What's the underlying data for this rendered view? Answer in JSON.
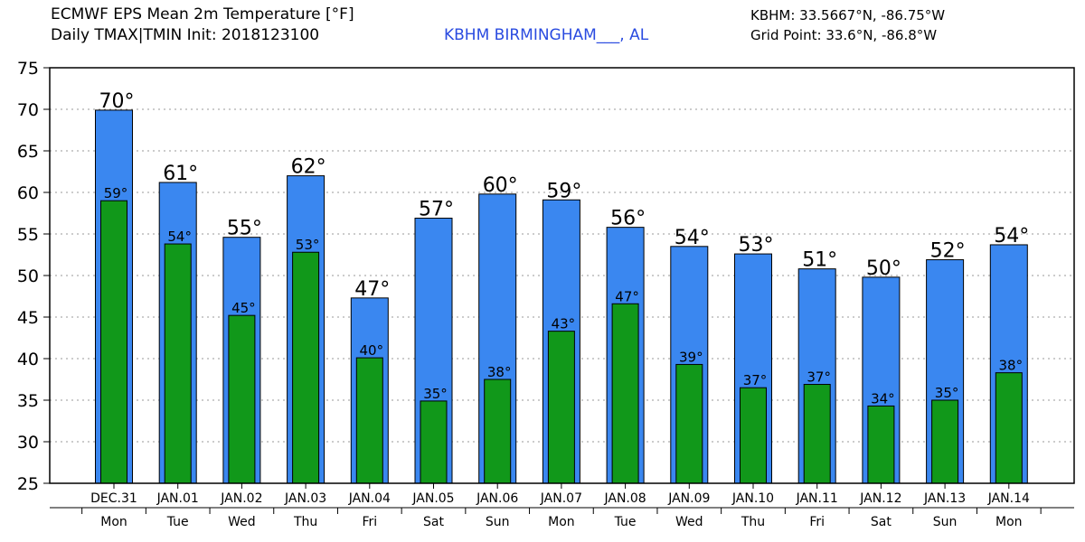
{
  "header": {
    "title_line1": "ECMWF EPS Mean 2m Temperature [°F]",
    "title_line2": "Daily TMAX|TMIN Init: 2018123100",
    "station": "KBHM BIRMINGHAM___, AL",
    "station_coords": "KBHM: 33.5667°N, -86.75°W",
    "grid_point": "Grid Point: 33.6°N, -86.8°W"
  },
  "colors": {
    "tmax_bar": "#3a87f0",
    "tmin_bar": "#11981a",
    "grid": "#999999",
    "station_text": "#2a4be0"
  },
  "chart_data": {
    "type": "bar",
    "title": "ECMWF EPS Mean 2m Temperature [°F]",
    "subtitle": "Daily TMAX|TMIN Init: 2018123100",
    "categories": [
      "DEC.31",
      "JAN.01",
      "JAN.02",
      "JAN.03",
      "JAN.04",
      "JAN.05",
      "JAN.06",
      "JAN.07",
      "JAN.08",
      "JAN.09",
      "JAN.10",
      "JAN.11",
      "JAN.12",
      "JAN.13",
      "JAN.14"
    ],
    "days": [
      "Mon",
      "Tue",
      "Wed",
      "Thu",
      "Fri",
      "Sat",
      "Sun",
      "Mon",
      "Tue",
      "Wed",
      "Thu",
      "Fri",
      "Sat",
      "Sun",
      "Mon"
    ],
    "series": [
      {
        "key": "tmax",
        "values": [
          69.9,
          61.2,
          54.6,
          62.0,
          47.3,
          56.9,
          59.8,
          59.1,
          55.8,
          53.5,
          52.6,
          50.8,
          49.8,
          51.9,
          53.7
        ],
        "labels": [
          "70°",
          "61°",
          "55°",
          "62°",
          "47°",
          "57°",
          "60°",
          "59°",
          "56°",
          "54°",
          "53°",
          "51°",
          "50°",
          "52°",
          "54°"
        ]
      },
      {
        "key": "tmin",
        "values": [
          59.0,
          53.8,
          45.2,
          52.8,
          40.1,
          34.9,
          37.5,
          43.3,
          46.6,
          39.3,
          36.5,
          36.9,
          34.3,
          35.0,
          38.3
        ],
        "labels": [
          "59°",
          "54°",
          "45°",
          "53°",
          "40°",
          "35°",
          "38°",
          "43°",
          "47°",
          "39°",
          "37°",
          "37°",
          "34°",
          "35°",
          "38°"
        ]
      }
    ],
    "yticks": [
      25,
      30,
      35,
      40,
      45,
      50,
      55,
      60,
      65,
      70,
      75
    ],
    "ylim": [
      25,
      75
    ],
    "grid": true
  }
}
